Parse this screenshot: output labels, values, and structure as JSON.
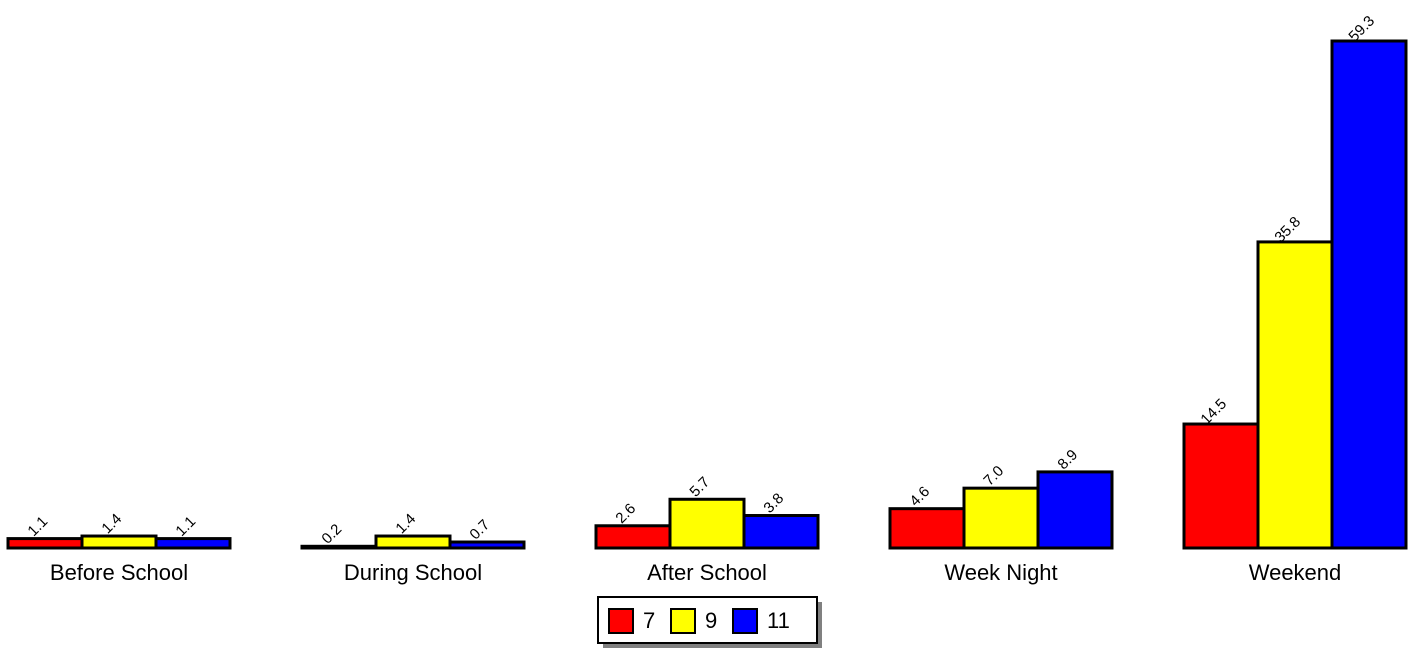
{
  "chart_data": {
    "type": "bar",
    "categories": [
      "Before School",
      "During School",
      "After School",
      "Week Night",
      "Weekend"
    ],
    "series": [
      {
        "name": "7",
        "color": "#ff0000",
        "values": [
          1.1,
          0.2,
          2.6,
          4.6,
          14.5
        ]
      },
      {
        "name": "9",
        "color": "#ffff00",
        "values": [
          1.4,
          1.4,
          5.7,
          7.0,
          35.8
        ]
      },
      {
        "name": "11",
        "color": "#0000ff",
        "values": [
          1.1,
          0.7,
          3.8,
          8.9,
          59.3
        ]
      }
    ],
    "title": "",
    "xlabel": "",
    "ylabel": "",
    "ylim": [
      0,
      59.3
    ],
    "grid": false,
    "legend": "bottom-center",
    "data_labels": true
  }
}
